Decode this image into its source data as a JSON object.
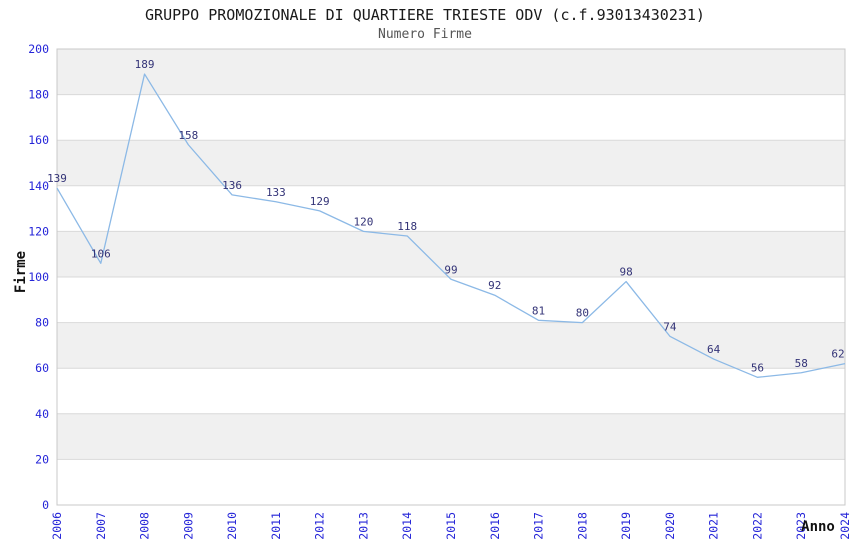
{
  "chart_data": {
    "type": "line",
    "title": "GRUPPO PROMOZIONALE DI QUARTIERE TRIESTE ODV (c.f.93013430231)",
    "subtitle": "Numero Firme",
    "xlabel": "Anno",
    "ylabel": "Firme",
    "categories": [
      "2006",
      "2007",
      "2008",
      "2009",
      "2010",
      "2011",
      "2012",
      "2013",
      "2014",
      "2015",
      "2016",
      "2017",
      "2018",
      "2019",
      "2020",
      "2021",
      "2022",
      "2023",
      "2024"
    ],
    "series": [
      {
        "name": "Numero Firme",
        "values": [
          139,
          106,
          189,
          158,
          136,
          133,
          129,
          120,
          118,
          99,
          92,
          81,
          80,
          98,
          74,
          64,
          56,
          58,
          62
        ]
      }
    ],
    "ylim": [
      0,
      200
    ],
    "ytick_step": 20,
    "grid": "horizontal-bands",
    "legend_position": "none",
    "data_labels_visible": true,
    "colors": {
      "line": "#8cb9e6",
      "data_label": "#333377",
      "tick_label": "#2525d8",
      "band_fill": "#f0f0f0",
      "grid_line": "#d9d9d9",
      "plot_border": "#c8c8c8",
      "title": "#1a1a1a",
      "subtitle": "#555555",
      "axis_title": "#111111",
      "background": "#ffffff"
    }
  }
}
